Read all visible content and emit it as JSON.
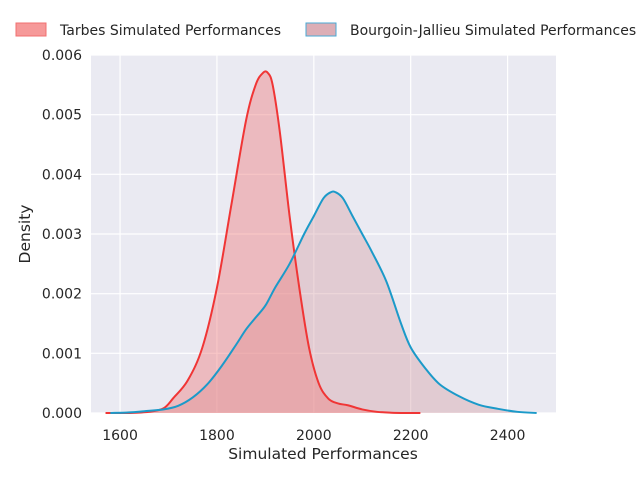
{
  "chart_data": {
    "type": "area",
    "title": "",
    "xlabel": "Simulated Performances",
    "ylabel": "Density",
    "xlim": [
      1540,
      2500
    ],
    "ylim": [
      0,
      0.006
    ],
    "xticks": [
      1600,
      1800,
      2000,
      2200,
      2400
    ],
    "yticks": [
      0.0,
      0.001,
      0.002,
      0.003,
      0.004,
      0.005,
      0.006
    ],
    "ytick_labels": [
      "0.000",
      "0.001",
      "0.002",
      "0.003",
      "0.004",
      "0.005",
      "0.006"
    ],
    "grid": true,
    "legend_position": "top",
    "series": [
      {
        "name": "Tarbes Simulated Performances",
        "color": "#f03535",
        "fill": "#f08080",
        "x": [
          1570,
          1620,
          1660,
          1690,
          1710,
          1740,
          1770,
          1800,
          1830,
          1860,
          1880,
          1895,
          1905,
          1915,
          1930,
          1950,
          1970,
          1990,
          2010,
          2030,
          2050,
          2070,
          2100,
          2130,
          2160,
          2190,
          2220
        ],
        "y": [
          0.0,
          0.0,
          2e-05,
          8e-05,
          0.00025,
          0.00055,
          0.0011,
          0.0021,
          0.0035,
          0.0049,
          0.0055,
          0.0057,
          0.0057,
          0.0055,
          0.0047,
          0.0033,
          0.0021,
          0.0011,
          0.0005,
          0.00024,
          0.00016,
          0.00013,
          6e-05,
          2e-05,
          5e-06,
          0.0,
          0.0
        ]
      },
      {
        "name": "Bourgoin-Jallieu Simulated Performances",
        "color": "#1b9ac9",
        "fill": "#d4a0a8",
        "x": [
          1580,
          1620,
          1650,
          1690,
          1720,
          1750,
          1780,
          1810,
          1840,
          1860,
          1880,
          1900,
          1920,
          1950,
          1980,
          2000,
          2020,
          2035,
          2045,
          2060,
          2080,
          2100,
          2120,
          2150,
          2180,
          2200,
          2230,
          2260,
          2300,
          2340,
          2380,
          2420,
          2460
        ],
        "y": [
          0.0,
          1e-05,
          3e-05,
          6e-05,
          0.00012,
          0.00026,
          0.00048,
          0.00079,
          0.00115,
          0.0014,
          0.0016,
          0.0018,
          0.0021,
          0.0025,
          0.003,
          0.0033,
          0.0036,
          0.0037,
          0.0037,
          0.0036,
          0.0033,
          0.003,
          0.0027,
          0.0022,
          0.0015,
          0.0011,
          0.00075,
          0.00048,
          0.00028,
          0.00014,
          7e-05,
          2e-05,
          0.0
        ]
      }
    ]
  }
}
